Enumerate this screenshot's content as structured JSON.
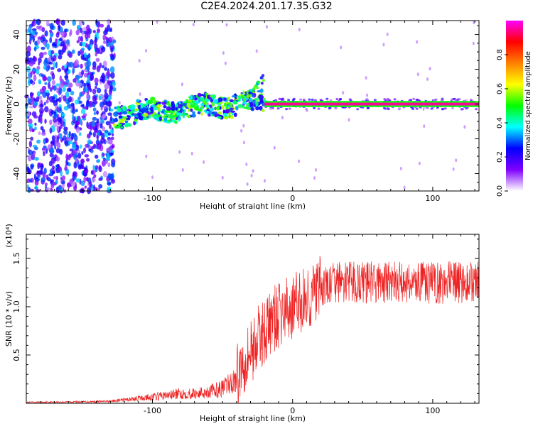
{
  "title": "C2E4.2024.201.17.35.G32",
  "chart_data": [
    {
      "type": "heatmap",
      "xlabel": "Height of straight line (km)",
      "ylabel": "Frequency (Hz)",
      "xlim": [
        -190,
        133
      ],
      "ylim": [
        -50,
        48
      ],
      "x_ticks": [
        -100,
        0,
        100
      ],
      "y_ticks": [
        -40,
        -20,
        0,
        20,
        40
      ],
      "colorbar": {
        "label": "Normalized spectral amplitude",
        "range": [
          0,
          1
        ],
        "ticks": [
          "0.0",
          "0.2",
          "0.4",
          "0.6",
          "0.8"
        ],
        "colors": [
          "#ffffff",
          "#7f00ff",
          "#0000ff",
          "#00ffff",
          "#00ff00",
          "#ffff00",
          "#ff8000",
          "#ff0000",
          "#ff00ff"
        ]
      },
      "regions": [
        {
          "x_range": [
            -190,
            -127
          ],
          "frequency_range": [
            -50,
            48
          ],
          "description_level": 0.35
        },
        {
          "x_range": [
            -127,
            -20
          ],
          "frequency_range": [
            -10,
            8
          ],
          "description_level": 0.45
        },
        {
          "x_range": [
            -20,
            133
          ],
          "frequency_center": 0,
          "description_level": 0.95
        }
      ]
    },
    {
      "type": "line",
      "xlabel": "Height of straight line (km)",
      "ylabel": "SNR (10 * v/v)",
      "y_multiplier": "(x10⁴)",
      "xlim": [
        -190,
        133
      ],
      "ylim": [
        0,
        1.75
      ],
      "x_ticks": [
        -100,
        0,
        100
      ],
      "y_ticks": [
        0.5,
        1.0,
        1.5
      ],
      "series": [
        {
          "color": "#ee2222",
          "x": [
            -190,
            -150,
            -130,
            -110,
            -90,
            -80,
            -70,
            -60,
            -50,
            -40,
            -35,
            -30,
            -25,
            -20,
            -15,
            -10,
            -5,
            0,
            10,
            20,
            30,
            50,
            70,
            90,
            110,
            133
          ],
          "y": [
            0.01,
            0.015,
            0.02,
            0.05,
            0.08,
            0.1,
            0.1,
            0.12,
            0.15,
            0.25,
            0.45,
            0.55,
            0.65,
            0.75,
            0.85,
            0.9,
            0.95,
            1.0,
            1.08,
            1.18,
            1.25,
            1.25,
            1.25,
            1.25,
            1.25,
            1.25
          ]
        }
      ]
    }
  ]
}
